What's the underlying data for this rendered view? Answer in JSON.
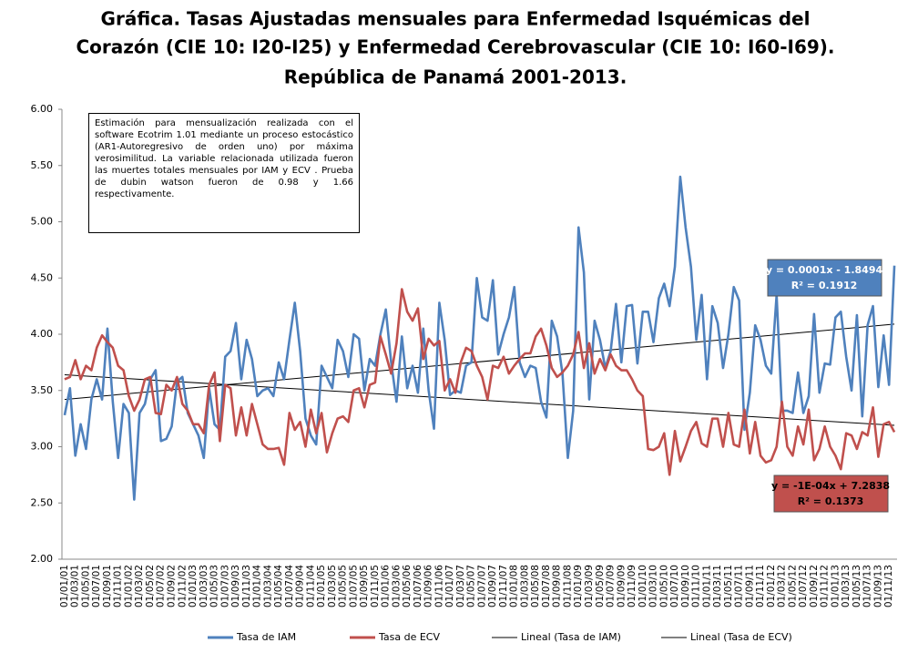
{
  "chart_data": {
    "type": "line",
    "title": [
      "Gráfica. Tasas Ajustadas mensuales para Enfermedad Isquémicas del",
      "Corazón (CIE 10: I20-I25) y Enfermedad Cerebrovascular (CIE 10: I60-I69).",
      "República de Panamá 2001-2013."
    ],
    "categories": [
      "01/01/01",
      null,
      "01/03/01",
      null,
      "01/05/01",
      null,
      "01/07/01",
      null,
      "01/09/01",
      null,
      "01/11/01",
      null,
      "01/01/02",
      null,
      "01/03/02",
      null,
      "01/05/02",
      null,
      "01/07/02",
      null,
      "01/09/02",
      null,
      "01/11/02",
      null,
      "01/01/03",
      null,
      "01/03/03",
      null,
      "01/05/03",
      null,
      "01/07/03",
      null,
      "01/09/03",
      null,
      "01/11/03",
      null,
      "01/01/04",
      null,
      "01/03/04",
      null,
      "01/05/04",
      null,
      "01/07/04",
      null,
      "01/09/04",
      null,
      "01/11/04",
      null,
      "01/01/05",
      null,
      "01/03/05",
      null,
      "01/05/05",
      null,
      "01/07/05",
      null,
      "01/09/05",
      null,
      "01/11/05",
      null,
      "01/01/06",
      null,
      "01/03/06",
      null,
      "01/05/06",
      null,
      "01/07/06",
      null,
      "01/09/06",
      null,
      "01/11/06",
      null,
      "01/01/07",
      null,
      "01/03/07",
      null,
      "01/05/07",
      null,
      "01/07/07",
      null,
      "01/09/07",
      null,
      "01/11/07",
      null,
      "01/01/08",
      null,
      "01/03/08",
      null,
      "01/05/08",
      null,
      "01/07/08",
      null,
      "01/09/08",
      null,
      "01/11/08",
      null,
      "01/01/09",
      null,
      "01/03/09",
      null,
      "01/05/09",
      null,
      "01/07/09",
      null,
      "01/09/09",
      null,
      "01/11/09",
      null,
      "01/01/10",
      null,
      "01/03/10",
      null,
      "01/05/10",
      null,
      "01/07/10",
      null,
      "01/09/10",
      null,
      "01/11/10",
      null,
      "01/01/11",
      null,
      "01/03/11",
      null,
      "01/05/11",
      null,
      "01/07/11",
      null,
      "01/09/11",
      null,
      "01/11/11",
      null,
      "01/01/12",
      null,
      "01/03/12",
      null,
      "01/05/12",
      null,
      "01/07/12",
      null,
      "01/09/12",
      null,
      "01/11/12",
      null,
      "01/01/13",
      null,
      "01/03/13",
      null,
      "01/05/13",
      null,
      "01/07/13",
      null,
      "01/09/13",
      null,
      "01/11/13",
      null
    ],
    "series": [
      {
        "name": "Tasa de IAM",
        "color": "#4f81bd",
        "values": [
          3.28,
          3.52,
          2.92,
          3.2,
          2.98,
          3.42,
          3.6,
          3.42,
          4.05,
          3.4,
          2.9,
          3.38,
          3.3,
          2.53,
          3.3,
          3.38,
          3.6,
          3.68,
          3.05,
          3.07,
          3.18,
          3.58,
          3.62,
          3.3,
          3.2,
          3.1,
          2.9,
          3.52,
          3.2,
          3.15,
          3.8,
          3.85,
          4.1,
          3.6,
          3.95,
          3.78,
          3.45,
          3.5,
          3.52,
          3.45,
          3.75,
          3.6,
          3.95,
          4.28,
          3.85,
          3.25,
          3.1,
          3.02,
          3.72,
          3.62,
          3.52,
          3.95,
          3.85,
          3.62,
          4.0,
          3.96,
          3.5,
          3.78,
          3.72,
          4.0,
          4.22,
          3.75,
          3.4,
          3.98,
          3.52,
          3.72,
          3.48,
          4.05,
          3.5,
          3.16,
          4.28,
          3.95,
          3.46,
          3.5,
          3.48,
          3.72,
          3.75,
          4.5,
          4.15,
          4.12,
          4.48,
          3.82,
          4.0,
          4.15,
          4.42,
          3.75,
          3.62,
          3.72,
          3.7,
          3.4,
          3.26,
          4.12,
          3.98,
          3.65,
          2.9,
          3.32,
          4.95,
          4.55,
          3.42,
          4.12,
          3.95,
          3.7,
          3.85,
          4.27,
          3.75,
          4.25,
          4.26,
          3.74,
          4.2,
          4.2,
          3.93,
          4.32,
          4.45,
          4.25,
          4.6,
          5.4,
          4.95,
          4.6,
          3.95,
          4.35,
          3.6,
          4.25,
          4.1,
          3.7,
          4.0,
          4.42,
          4.3,
          3.15,
          3.48,
          4.08,
          3.95,
          3.72,
          3.65,
          4.35,
          3.32,
          3.32,
          3.3,
          3.66,
          3.3,
          3.45,
          4.18,
          3.48,
          3.74,
          3.73,
          4.15,
          4.2,
          3.8,
          3.5,
          4.17,
          3.27,
          4.08,
          4.25,
          3.53,
          3.99,
          3.55,
          4.61
        ]
      },
      {
        "name": "Tasa de ECV",
        "color": "#c0504d",
        "values": [
          3.6,
          3.62,
          3.77,
          3.6,
          3.72,
          3.68,
          3.88,
          3.99,
          3.93,
          3.88,
          3.72,
          3.68,
          3.45,
          3.32,
          3.42,
          3.6,
          3.62,
          3.3,
          3.29,
          3.55,
          3.5,
          3.62,
          3.38,
          3.32,
          3.2,
          3.2,
          3.12,
          3.55,
          3.66,
          3.05,
          3.55,
          3.52,
          3.1,
          3.35,
          3.1,
          3.38,
          3.2,
          3.02,
          2.98,
          2.98,
          2.99,
          2.84,
          3.3,
          3.15,
          3.22,
          3.0,
          3.33,
          3.12,
          3.3,
          2.95,
          3.12,
          3.25,
          3.27,
          3.22,
          3.5,
          3.52,
          3.35,
          3.55,
          3.57,
          3.98,
          3.82,
          3.65,
          3.92,
          4.4,
          4.2,
          4.12,
          4.23,
          3.78,
          3.96,
          3.9,
          3.94,
          3.5,
          3.6,
          3.48,
          3.75,
          3.88,
          3.85,
          3.72,
          3.62,
          3.42,
          3.72,
          3.7,
          3.8,
          3.65,
          3.72,
          3.78,
          3.83,
          3.83,
          3.98,
          4.05,
          3.9,
          3.7,
          3.62,
          3.66,
          3.72,
          3.82,
          4.02,
          3.7,
          3.92,
          3.65,
          3.78,
          3.68,
          3.82,
          3.72,
          3.68,
          3.68,
          3.6,
          3.5,
          3.45,
          2.98,
          2.97,
          3.0,
          3.12,
          2.75,
          3.14,
          2.87,
          3.0,
          3.14,
          3.22,
          3.03,
          3.0,
          3.25,
          3.25,
          3.0,
          3.3,
          3.02,
          3.0,
          3.33,
          2.94,
          3.22,
          2.92,
          2.86,
          2.88,
          3.0,
          3.4,
          3.0,
          2.92,
          3.18,
          3.02,
          3.33,
          2.88,
          2.98,
          3.18,
          3.0,
          2.92,
          2.8,
          3.12,
          3.1,
          2.98,
          3.13,
          3.1,
          3.35,
          2.91,
          3.2,
          3.22,
          3.13
        ]
      }
    ],
    "trendlines": [
      {
        "name": "Lineal (Tasa de IAM)",
        "color": "#000000",
        "values": [
          3.42,
          4.09
        ],
        "equation": "y = 0.0001x - 1.8494",
        "r2": "R² = 0.1912",
        "box_color": "#4f81bd"
      },
      {
        "name": "Lineal (Tasa de ECV)",
        "color": "#000000",
        "values": [
          3.64,
          3.19
        ],
        "equation": "y = -1E-04x + 7.2838",
        "r2": "R² = 0.1373",
        "box_color": "#c0504d"
      }
    ],
    "annotation": "Estimación para mensualización realizada con el software Ecotrim 1.01 mediante un proceso estocástico (AR1-Autoregresivo de orden uno) por máxima verosimilitud. La variable relacionada utilizada fueron las muertes totales mensuales por IAM y ECV . Prueba de dubin watson fueron de 0.98 y 1.66 respectivamente.",
    "ylim": [
      2,
      6
    ],
    "yticks": [
      {
        "value": 2,
        "label": "2.00"
      },
      {
        "value": 2.5,
        "label": "2.50"
      },
      {
        "value": 3,
        "label": "3.00"
      },
      {
        "value": 3.5,
        "label": "3.50"
      },
      {
        "value": 4,
        "label": "4.00"
      },
      {
        "value": 4.5,
        "label": "4.50"
      },
      {
        "value": 5,
        "label": "5.00"
      },
      {
        "value": 5.5,
        "label": "5.50"
      },
      {
        "value": 6,
        "label": "6.00"
      }
    ],
    "grid": false,
    "legend": "bottom"
  }
}
